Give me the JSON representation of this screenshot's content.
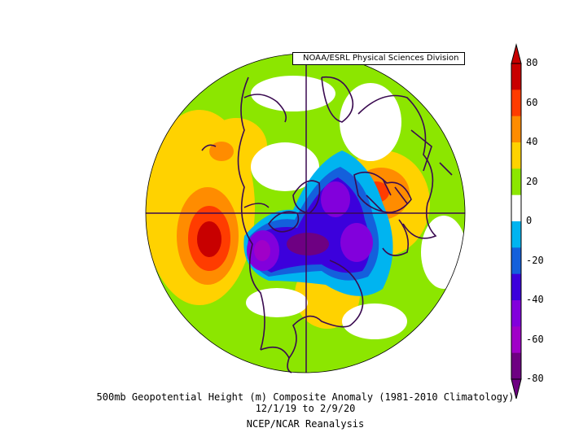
{
  "header": {
    "agency": "NOAA/ESRL Physical Sciences Division"
  },
  "caption": {
    "line1": "500mb Geopotential Height (m) Composite Anomaly (1981-2010 Climatology)",
    "line2": "12/1/19  to 2/9/20",
    "line3": "NCEP/NCAR Reanalysis"
  },
  "colorbar": {
    "ticks": [
      "80",
      "60",
      "40",
      "20",
      "0",
      "-20",
      "-40",
      "-60",
      "-80"
    ],
    "colors": [
      "#c80000",
      "#ff3c00",
      "#ff8c00",
      "#ffd200",
      "#8ce600",
      "#ffffff",
      "#00b4f0",
      "#1460dc",
      "#3c00dc",
      "#8200dc",
      "#a000c8",
      "#6e0082"
    ]
  },
  "map": {
    "projection": "polar stereographic, north pole",
    "variable": "500mb geopotential height anomaly",
    "units": "m",
    "palette": {
      "pos80": "#c80000",
      "pos70": "#ff3c00",
      "pos60": "#ff8c00",
      "pos40": "#ffd200",
      "pos20": "#8ce600",
      "neutral": "#ffffff",
      "neg20": "#00b4f0",
      "neg30": "#1460dc",
      "neg40": "#3c00dc",
      "neg50": "#8200dc",
      "neg60": "#a000c8",
      "neg80": "#6e0082"
    }
  }
}
